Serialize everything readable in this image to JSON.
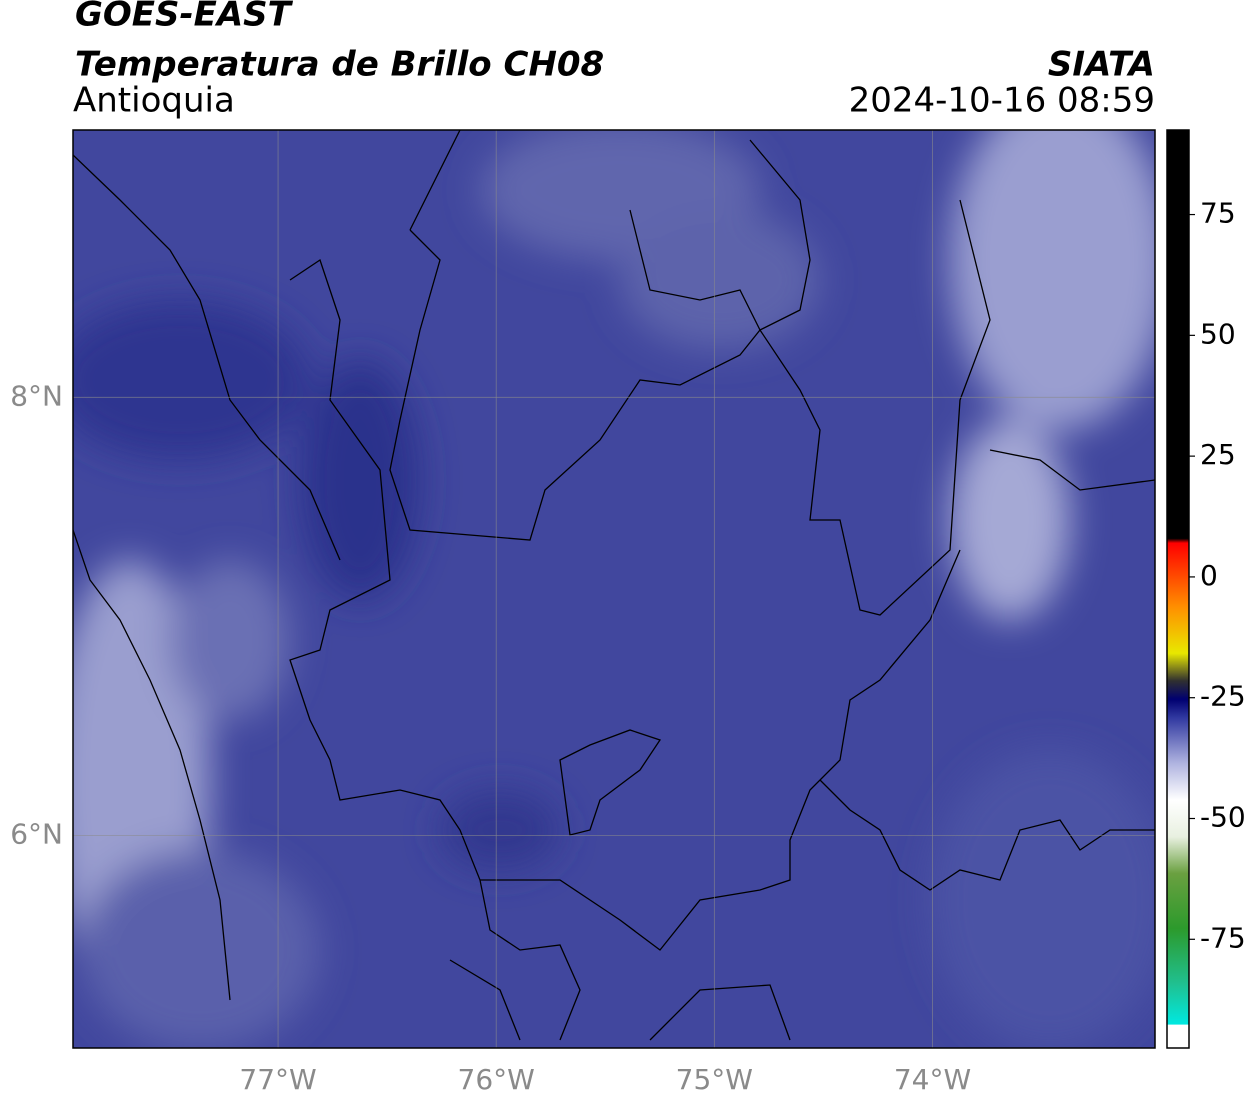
{
  "header": {
    "title": "GOES-EAST",
    "subtitle": "Temperatura de Brillo CH08",
    "region": "Antioquia",
    "source": "SIATA",
    "datetime": "2024-10-16 08:59"
  },
  "map": {
    "xlim": [
      -77.94,
      -72.98
    ],
    "ylim": [
      5.03,
      9.22
    ],
    "xticks": [
      {
        "value": -77,
        "label": "77°W"
      },
      {
        "value": -76,
        "label": "76°W"
      },
      {
        "value": -75,
        "label": "75°W"
      },
      {
        "value": -74,
        "label": "74°W"
      }
    ],
    "yticks": [
      {
        "value": 6,
        "label": "6°N"
      },
      {
        "value": 8,
        "label": "8°N"
      }
    ],
    "grid": true
  },
  "colorbar": {
    "lim": [
      -97.5,
      92.5
    ],
    "ticks": [
      75,
      50,
      25,
      0,
      -25,
      -50,
      -75
    ]
  }
}
